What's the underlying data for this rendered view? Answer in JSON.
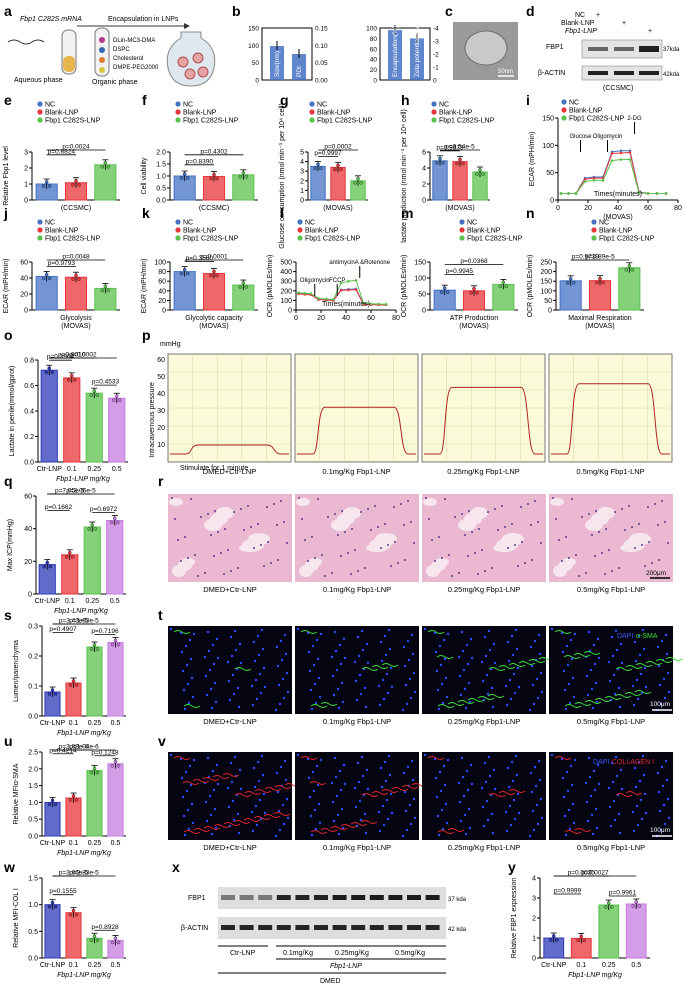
{
  "panels": {
    "a": {
      "letter": "a",
      "mrna": "Fbp1 C282S mRNA",
      "encap": "Encapsulation in LNPs",
      "aqueous": "Aqueous phase",
      "organic": "Organic phase",
      "lipids": [
        "DLin-MC3-DMA",
        "DSPC",
        "Cholesterol",
        "DMPE-PEG2000"
      ]
    },
    "b": {
      "letter": "b"
    },
    "c": {
      "letter": "c",
      "scale": "50nm"
    },
    "d": {
      "letter": "d",
      "rows": [
        "NC",
        "Blank-LNP",
        "Fbp1-LNP"
      ],
      "signs": [
        [
          "+",
          "",
          ""
        ],
        [
          "",
          "+",
          ""
        ],
        [
          "",
          "",
          "+"
        ]
      ],
      "bands": [
        "FBP1",
        "β-ACTIN"
      ],
      "kda": [
        "37kda",
        "42kda"
      ],
      "cell": "(CCSMC)"
    },
    "e": {
      "letter": "e"
    },
    "f": {
      "letter": "f"
    },
    "g": {
      "letter": "g"
    },
    "h": {
      "letter": "h"
    },
    "i": {
      "letter": "i"
    },
    "j": {
      "letter": "j"
    },
    "k": {
      "letter": "k"
    },
    "l": {
      "letter": "l"
    },
    "m": {
      "letter": "m"
    },
    "n": {
      "letter": "n"
    },
    "o": {
      "letter": "o"
    },
    "p": {
      "letter": "p",
      "unit": "mmHg",
      "ylabel": "Intracavernous pressure",
      "stim": "Stimulate for 1 minute",
      "yticks": [
        "60",
        "50",
        "40",
        "30",
        "20",
        "10"
      ],
      "groups": [
        "DMED+Ctr-LNP",
        "0.1mg/Kg Fbp1-LNP",
        "0.25mg/Kg Fbp1-LNP",
        "0.5mg/Kg Fbp1-LNP"
      ],
      "plateau": [
        5,
        26,
        37,
        39
      ]
    },
    "q": {
      "letter": "q"
    },
    "r": {
      "letter": "r",
      "groups": [
        "DMED+Ctr-LNP",
        "0.1mg/Kg Fbp1-LNP",
        "0.25mg/Kg Fbp1-LNP",
        "0.5mg/Kg Fbp1-LNP"
      ],
      "scale": "200μm"
    },
    "s": {
      "letter": "s"
    },
    "t": {
      "letter": "t",
      "groups": [
        "DMED+Ctr-LNP",
        "0.1mg/Kg Fbp1-LNP",
        "0.25mg/Kg Fbp1-LNP",
        "0.5mg/Kg Fbp1-LNP"
      ],
      "stain1": "DAPI",
      "stain2": "α-SMA",
      "scale": "100μm"
    },
    "u": {
      "letter": "u"
    },
    "v": {
      "letter": "v",
      "groups": [
        "DMED+Ctr-LNP",
        "0.1mg/Kg Fbp1-LNP",
        "0.25mg/Kg Fbp1-LNP",
        "0.5mg/Kg Fbp1-LNP"
      ],
      "stain1": "DAPI",
      "stain2": "COLLAGEN I",
      "scale": "100μm"
    },
    "w": {
      "letter": "w"
    },
    "x": {
      "letter": "x",
      "bands": [
        "FBP1",
        "β-ACTIN"
      ],
      "kda": [
        "37 kda",
        "42 kda"
      ],
      "groups": [
        "Ctr-LNP",
        "0.1mg/Kg",
        "0.25mg/Kg",
        "0.5mg/Kg"
      ],
      "agent": "Fbp1-LNP",
      "model": "DMED"
    },
    "y": {
      "letter": "y"
    }
  },
  "colors": {
    "nc": "#4472c4",
    "blank": "#e8363a",
    "mut": "#5bc24e",
    "q4": "#c77be0",
    "ctr": "#2f3ab8"
  },
  "chart_data": [
    {
      "id": "b1",
      "type": "bar",
      "categories": [
        "Size(nm)",
        "PDI"
      ],
      "values": [
        98,
        0.075
      ],
      "ylim": [
        0,
        150
      ],
      "ylim2": [
        0,
        0.15
      ],
      "yticks": [
        "0",
        "50",
        "100",
        "150"
      ],
      "yticks2": [
        "0.00",
        "0.05",
        "0.10",
        "0.15"
      ],
      "colors": [
        "#4472c4",
        "#4472c4"
      ]
    },
    {
      "id": "b2",
      "type": "bar",
      "categories": [
        "Encapsulation(%)",
        "Zeta potential(mv)"
      ],
      "values": [
        96,
        -3.2
      ],
      "ylim": [
        0,
        100
      ],
      "ylim2": [
        0,
        -4
      ],
      "yticks": [
        "0",
        "20",
        "40",
        "60",
        "80",
        "100"
      ],
      "yticks2": [
        "0",
        "-1",
        "-2",
        "-3",
        "-4"
      ],
      "colors": [
        "#4472c4",
        "#4472c4"
      ]
    },
    {
      "id": "e",
      "type": "bar",
      "ylabel": "Relative Fbp1 level",
      "xlabel": "(CCSMC)",
      "ylim": [
        0,
        3
      ],
      "yticks": [
        "0",
        "1",
        "2",
        "3"
      ],
      "legend": [
        "NC",
        "Blank-LNP",
        "Fbp1 C282S-LNP"
      ],
      "values": [
        1.0,
        1.08,
        2.2
      ],
      "pvals": [
        {
          "a": 0,
          "b": 1,
          "t": "p=0.8824"
        },
        {
          "a": 0,
          "b": 2,
          "t": "p=0.0024"
        }
      ]
    },
    {
      "id": "f",
      "type": "bar",
      "ylabel": "Cell viability",
      "xlabel": "(CCSMC)",
      "ylim": [
        0,
        2.0
      ],
      "yticks": [
        "0.0",
        "0.5",
        "1.0",
        "1.5",
        "2.0"
      ],
      "legend": [
        "NC",
        "Blank-LNP",
        "Fbp1 C282S-LNP"
      ],
      "values": [
        1.0,
        0.98,
        1.05
      ],
      "pvals": [
        {
          "a": 0,
          "b": 1,
          "t": "p=0.8390"
        },
        {
          "a": 0,
          "b": 2,
          "t": "p=0.4302"
        }
      ]
    },
    {
      "id": "g",
      "type": "bar",
      "ylabel": "Glucose consumption (nmol min⁻¹ per 10⁴ cell)",
      "xlabel": "(MOVAS)",
      "ylim": [
        0,
        5
      ],
      "yticks": [
        "0",
        "1",
        "2",
        "3",
        "4",
        "5"
      ],
      "legend": [
        "NC",
        "Blank-LNP",
        "Fbp1 C282S-LNP"
      ],
      "values": [
        3.5,
        3.4,
        2.0
      ],
      "pvals": [
        {
          "a": 0,
          "b": 1,
          "t": "p=0.9997"
        },
        {
          "a": 0,
          "b": 2,
          "t": "p=0.0002"
        }
      ]
    },
    {
      "id": "h",
      "type": "bar",
      "ylabel": "lactate production (nmol min⁻¹ per 10⁴ cell)",
      "xlabel": "(MOVAS)",
      "ylim": [
        0,
        6
      ],
      "yticks": [
        "0",
        "2",
        "4",
        "6"
      ],
      "legend": [
        "NC",
        "Blank-LNP",
        "Fbp1 C282S-LNP"
      ],
      "values": [
        4.9,
        4.8,
        3.5
      ],
      "pvals": [
        {
          "a": 0,
          "b": 1,
          "t": "p=0.9979"
        },
        {
          "a": 0,
          "b": 2,
          "t": "p=3.54e-5"
        }
      ]
    },
    {
      "id": "i",
      "type": "line",
      "ylabel": "ECAR (mPH/min)",
      "xlabel": "Times(minutes)",
      "sub": "(MOVAS)",
      "xlim": [
        0,
        80
      ],
      "ylim": [
        0,
        150
      ],
      "xticks": [
        "0",
        "20",
        "40",
        "60",
        "80"
      ],
      "yticks": [
        "0",
        "50",
        "100",
        "150"
      ],
      "legend": [
        "NC",
        "Blank-LNP",
        "Fbp1 C282S-LNP"
      ],
      "injections": [
        "Glucose",
        "Oligomycin",
        "2-DG"
      ],
      "x": [
        2,
        7,
        12,
        18,
        24,
        30,
        36,
        42,
        48,
        54,
        60,
        66,
        72
      ],
      "series": [
        {
          "name": "NC",
          "values": [
            12,
            12,
            12,
            40,
            42,
            42,
            88,
            90,
            90,
            15,
            12,
            12,
            12
          ]
        },
        {
          "name": "Blank-LNP",
          "values": [
            12,
            12,
            12,
            38,
            40,
            40,
            85,
            86,
            87,
            14,
            12,
            12,
            12
          ]
        },
        {
          "name": "Fbp1 C282S-LNP",
          "values": [
            12,
            12,
            12,
            34,
            36,
            36,
            72,
            74,
            74,
            13,
            12,
            12,
            12
          ]
        }
      ]
    },
    {
      "id": "j",
      "type": "bar",
      "ylabel": "ECAR (mPH/min)",
      "xlabel": "Glycolysis",
      "sub": "(MOVAS)",
      "ylim": [
        0,
        60
      ],
      "yticks": [
        "0",
        "20",
        "40",
        "60"
      ],
      "legend": [
        "NC",
        "Blank-LNP",
        "Fbp1 C282S-LNP"
      ],
      "values": [
        42,
        41,
        27
      ],
      "pvals": [
        {
          "a": 0,
          "b": 1,
          "t": "p=0.9793"
        },
        {
          "a": 0,
          "b": 2,
          "t": "p=0.0048"
        }
      ]
    },
    {
      "id": "k",
      "type": "bar",
      "ylabel": "ECAR (mPH/min)",
      "xlabel": "Glycolytic capacity",
      "sub": "(MOVAS)",
      "ylim": [
        0,
        100
      ],
      "yticks": [
        "0",
        "20",
        "40",
        "60",
        "80",
        "100"
      ],
      "legend": [
        "NC",
        "Blank-LNP",
        "Fbp1 C282S-LNP"
      ],
      "values": [
        80,
        76,
        52
      ],
      "pvals": [
        {
          "a": 0,
          "b": 1,
          "t": "p=0.3560"
        },
        {
          "a": 0,
          "b": 2,
          "t": "p=0.0001"
        }
      ]
    },
    {
      "id": "l",
      "type": "line",
      "ylabel": "OCR (pMOLEs/min)",
      "xlabel": "Times(minutes)",
      "xlim": [
        0,
        80
      ],
      "ylim": [
        0,
        500
      ],
      "xticks": [
        "0",
        "20",
        "40",
        "60",
        "80"
      ],
      "yticks": [
        "0",
        "100",
        "200",
        "300",
        "400",
        "500"
      ],
      "legend": [
        "NC",
        "Blank-LNP",
        "Fbp1 C282S-LNP"
      ],
      "injections": [
        "Oligomycin",
        "FCCP",
        "antimycinA &Rotenone"
      ],
      "x": [
        2,
        7,
        12,
        18,
        24,
        30,
        36,
        42,
        48,
        54,
        60,
        66,
        72
      ],
      "series": [
        {
          "name": "NC",
          "values": [
            170,
            165,
            160,
            110,
            105,
            100,
            210,
            215,
            220,
            60,
            58,
            55,
            55
          ]
        },
        {
          "name": "Blank-LNP",
          "values": [
            168,
            163,
            158,
            108,
            103,
            99,
            205,
            208,
            212,
            58,
            56,
            54,
            54
          ]
        },
        {
          "name": "Fbp1 C282S-LNP",
          "values": [
            180,
            175,
            170,
            120,
            115,
            110,
            280,
            300,
            310,
            70,
            65,
            62,
            60
          ]
        }
      ]
    },
    {
      "id": "m",
      "type": "bar",
      "ylabel": "OCR (pMOLEs/min)",
      "xlabel": "ATP Production",
      "sub": "(MOVAS)",
      "ylim": [
        0,
        150
      ],
      "yticks": [
        "0",
        "50",
        "100",
        "150"
      ],
      "legend": [
        "NC",
        "Blank-LNP",
        "Fbp1 C282S-LNP"
      ],
      "values": [
        62,
        60,
        80
      ],
      "pvals": [
        {
          "a": 0,
          "b": 1,
          "t": "p=0.9945"
        },
        {
          "a": 0,
          "b": 2,
          "t": "p=0.0368"
        }
      ]
    },
    {
      "id": "n",
      "type": "bar",
      "ylabel": "OCR (pMOLEs/min)",
      "xlabel": "Maximal Respiration",
      "sub": "(MOVAS)",
      "ylim": [
        0,
        250
      ],
      "yticks": [
        "0",
        "50",
        "100",
        "150",
        "200",
        "250"
      ],
      "legend": [
        "NC",
        "Blank-LNP",
        "Fbp1 C282S-LNP"
      ],
      "values": [
        152,
        153,
        220
      ],
      "pvals": [
        {
          "a": 0,
          "b": 1,
          "t": "p=0.9719"
        },
        {
          "a": 0,
          "b": 2,
          "t": "p=4.89e-5"
        }
      ]
    },
    {
      "id": "o",
      "type": "bar",
      "ylabel": "Lactate in penile(mmol/gprot)",
      "categories": [
        "Ctr-LNP",
        "0.1",
        "0.25",
        "0.5"
      ],
      "xlabel": "Fbp1-LNP mg/Kg",
      "ylim": [
        0,
        0.8
      ],
      "yticks": [
        "0.0",
        "0.2",
        "0.4",
        "0.6",
        "0.8"
      ],
      "values": [
        0.72,
        0.66,
        0.54,
        0.5
      ],
      "pvals": [
        {
          "a": 0,
          "b": 1,
          "t": "p=0.3964"
        },
        {
          "a": 0,
          "b": 2,
          "t": "p=0.0010"
        },
        {
          "a": 0,
          "b": 3,
          "t": "p=0.0002"
        },
        {
          "a": 2,
          "b": 3,
          "t": "p=0.4533"
        }
      ]
    },
    {
      "id": "q",
      "type": "bar",
      "ylabel": "Max ICP(mmHg)",
      "categories": [
        "Ctr-LNP",
        "0.1",
        "0.25",
        "0.5"
      ],
      "xlabel": "Fbp1-LNP mg/Kg",
      "ylim": [
        0,
        60
      ],
      "yticks": [
        "0",
        "20",
        "40",
        "60"
      ],
      "values": [
        18,
        24,
        41,
        45
      ],
      "pvals": [
        {
          "a": 0,
          "b": 1,
          "t": "p=0.1662"
        },
        {
          "a": 0,
          "b": 2,
          "t": "p=7.05e-5"
        },
        {
          "a": 0,
          "b": 3,
          "t": "p=3.06e-5"
        },
        {
          "a": 2,
          "b": 3,
          "t": "p=0.6972"
        }
      ]
    },
    {
      "id": "s",
      "type": "bar",
      "ylabel": "Lumen/parenchyma",
      "categories": [
        "Ctr-LNP",
        "0.1",
        "0.25",
        "0.5"
      ],
      "xlabel": "Fbp1-LNP mg/Kg",
      "ylim": [
        0,
        0.3
      ],
      "yticks": [
        "0.0",
        "0.1",
        "0.2",
        "0.3"
      ],
      "values": [
        0.08,
        0.11,
        0.23,
        0.245
      ],
      "pvals": [
        {
          "a": 0,
          "b": 1,
          "t": "p=0.4907"
        },
        {
          "a": 0,
          "b": 2,
          "t": "p=3.43e-5"
        },
        {
          "a": 0,
          "b": 3,
          "t": "p=1.63e-5"
        },
        {
          "a": 2,
          "b": 3,
          "t": "p=0.7196"
        }
      ]
    },
    {
      "id": "u",
      "type": "bar",
      "ylabel": "Relative MFIα-SMA",
      "categories": [
        "Ctr-LNP",
        "0.1",
        "0.25",
        "0.5"
      ],
      "xlabel": "Fbp1-LNP mg/Kg",
      "ylim": [
        0,
        2.5
      ],
      "yticks": [
        "0.0",
        "0.5",
        "1.0",
        "1.5",
        "2.0",
        "2.5"
      ],
      "values": [
        1.0,
        1.13,
        1.95,
        2.15
      ],
      "pvals": [
        {
          "a": 0,
          "b": 1,
          "t": "p=0.4214"
        },
        {
          "a": 0,
          "b": 2,
          "t": "p=3.88e-6"
        },
        {
          "a": 0,
          "b": 3,
          "t": "p=1.04e-6"
        },
        {
          "a": 2,
          "b": 3,
          "t": "p=0.1248"
        }
      ]
    },
    {
      "id": "w",
      "type": "bar",
      "ylabel": "Relative MFI-COL I",
      "categories": [
        "Ctr-LNP",
        "0.1",
        "0.25",
        "0.5"
      ],
      "xlabel": "Fbp1-LNP mg/Kg",
      "ylim": [
        0,
        1.5
      ],
      "yticks": [
        "0.0",
        "0.5",
        "1.0",
        "1.5"
      ],
      "values": [
        1.0,
        0.85,
        0.37,
        0.33
      ],
      "pvals": [
        {
          "a": 0,
          "b": 1,
          "t": "p=0.1555"
        },
        {
          "a": 0,
          "b": 2,
          "t": "p=3.86e-5"
        },
        {
          "a": 0,
          "b": 3,
          "t": "p=2.33e-5"
        },
        {
          "a": 2,
          "b": 3,
          "t": "p=0.8928"
        }
      ]
    },
    {
      "id": "y",
      "type": "bar",
      "ylabel": "Relative FBP1 expression",
      "categories": [
        "Ctr-LNP",
        "0.1",
        "0.25",
        "0.5"
      ],
      "xlabel": "Fbp1-LNP mg/Kg",
      "ylim": [
        0,
        4
      ],
      "yticks": [
        "0",
        "1",
        "2",
        "3",
        "4"
      ],
      "values": [
        1.0,
        0.98,
        2.65,
        2.7
      ],
      "pvals": [
        {
          "a": 0,
          "b": 1,
          "t": "p=0.9999"
        },
        {
          "a": 0,
          "b": 2,
          "t": "p=0.0035"
        },
        {
          "a": 0,
          "b": 3,
          "t": "p=0.0027"
        },
        {
          "a": 2,
          "b": 3,
          "t": "p=0.9961"
        }
      ]
    }
  ]
}
